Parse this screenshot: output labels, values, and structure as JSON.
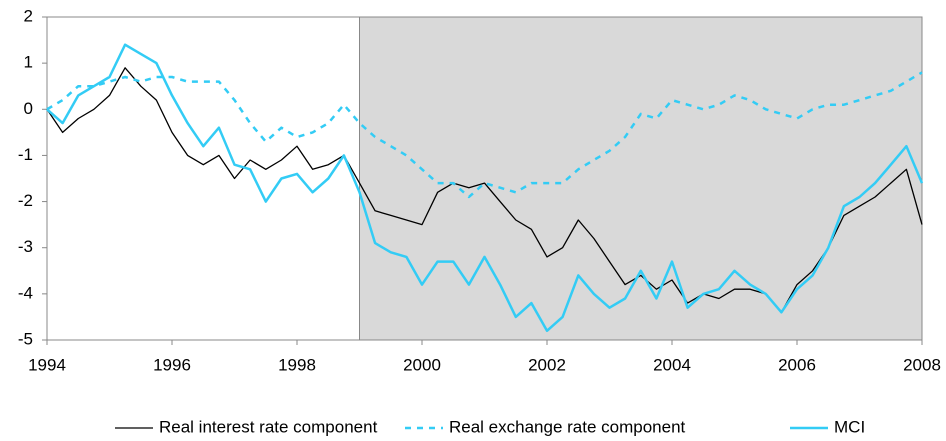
{
  "chart_data": {
    "type": "line",
    "x": [
      1994,
      1994.25,
      1994.5,
      1994.75,
      1995,
      1995.25,
      1995.5,
      1995.75,
      1996,
      1996.25,
      1996.5,
      1996.75,
      1997,
      1997.25,
      1997.5,
      1997.75,
      1998,
      1998.25,
      1998.5,
      1998.75,
      1999,
      1999.25,
      1999.5,
      1999.75,
      2000,
      2000.25,
      2000.5,
      2000.75,
      2001,
      2001.25,
      2001.5,
      2001.75,
      2002,
      2002.25,
      2002.5,
      2002.75,
      2003,
      2003.25,
      2003.5,
      2003.75,
      2004,
      2004.25,
      2004.5,
      2004.75,
      2005,
      2005.25,
      2005.5,
      2005.75,
      2006,
      2006.25,
      2006.5,
      2006.75,
      2007,
      2007.25,
      2007.5,
      2007.75,
      2008
    ],
    "series": [
      {
        "name": "Real interest rate component",
        "color": "#000000",
        "style": "solid",
        "values": [
          0,
          -0.5,
          -0.2,
          0,
          0.3,
          0.9,
          0.5,
          0.2,
          -0.5,
          -1.0,
          -1.2,
          -1.0,
          -1.5,
          -1.1,
          -1.3,
          -1.1,
          -0.8,
          -1.3,
          -1.2,
          -1.0,
          -1.6,
          -2.2,
          -2.3,
          -2.4,
          -2.5,
          -1.8,
          -1.6,
          -1.7,
          -1.6,
          -2.0,
          -2.4,
          -2.6,
          -3.2,
          -3.0,
          -2.4,
          -2.8,
          -3.3,
          -3.8,
          -3.6,
          -3.9,
          -3.7,
          -4.2,
          -4.0,
          -4.1,
          -3.9,
          -3.9,
          -4.0,
          -4.4,
          -3.8,
          -3.5,
          -3.0,
          -2.3,
          -2.1,
          -1.9,
          -1.6,
          -1.3,
          -2.5
        ]
      },
      {
        "name": "Real exchange rate component",
        "color": "#33ccf5",
        "style": "dashed",
        "values": [
          0,
          0.2,
          0.5,
          0.5,
          0.6,
          0.7,
          0.6,
          0.7,
          0.7,
          0.6,
          0.6,
          0.6,
          0.2,
          -0.3,
          -0.7,
          -0.4,
          -0.6,
          -0.5,
          -0.3,
          0.1,
          -0.3,
          -0.6,
          -0.8,
          -1.0,
          -1.3,
          -1.6,
          -1.6,
          -1.9,
          -1.6,
          -1.7,
          -1.8,
          -1.6,
          -1.6,
          -1.6,
          -1.3,
          -1.1,
          -0.9,
          -0.6,
          -0.1,
          -0.2,
          0.2,
          0.1,
          0,
          0.1,
          0.3,
          0.2,
          0,
          -0.1,
          -0.2,
          0,
          0.1,
          0.1,
          0.2,
          0.3,
          0.4,
          0.6,
          0.8
        ]
      },
      {
        "name": "MCI",
        "color": "#33ccf5",
        "style": "solid",
        "values": [
          0,
          -0.3,
          0.3,
          0.5,
          0.7,
          1.4,
          1.2,
          1.0,
          0.3,
          -0.3,
          -0.8,
          -0.4,
          -1.2,
          -1.3,
          -2.0,
          -1.5,
          -1.4,
          -1.8,
          -1.5,
          -1.0,
          -1.8,
          -2.9,
          -3.1,
          -3.2,
          -3.8,
          -3.3,
          -3.3,
          -3.8,
          -3.2,
          -3.8,
          -4.5,
          -4.2,
          -4.8,
          -4.5,
          -3.6,
          -4.0,
          -4.3,
          -4.1,
          -3.5,
          -4.1,
          -3.3,
          -4.3,
          -4.0,
          -3.9,
          -3.5,
          -3.8,
          -4.0,
          -4.4,
          -3.9,
          -3.6,
          -3.0,
          -2.1,
          -1.9,
          -1.6,
          -1.2,
          -0.8,
          -1.6
        ]
      }
    ],
    "xlim": [
      1994,
      2008
    ],
    "ylim": [
      -5,
      2
    ],
    "xticks": [
      1994,
      1996,
      1998,
      2000,
      2002,
      2004,
      2006,
      2008
    ],
    "yticks": [
      -5,
      -4,
      -3,
      -2,
      -1,
      0,
      1,
      2
    ],
    "shaded_region": [
      1999,
      2008
    ],
    "shade_color": "#d9d9d9",
    "legend": "bottom"
  }
}
